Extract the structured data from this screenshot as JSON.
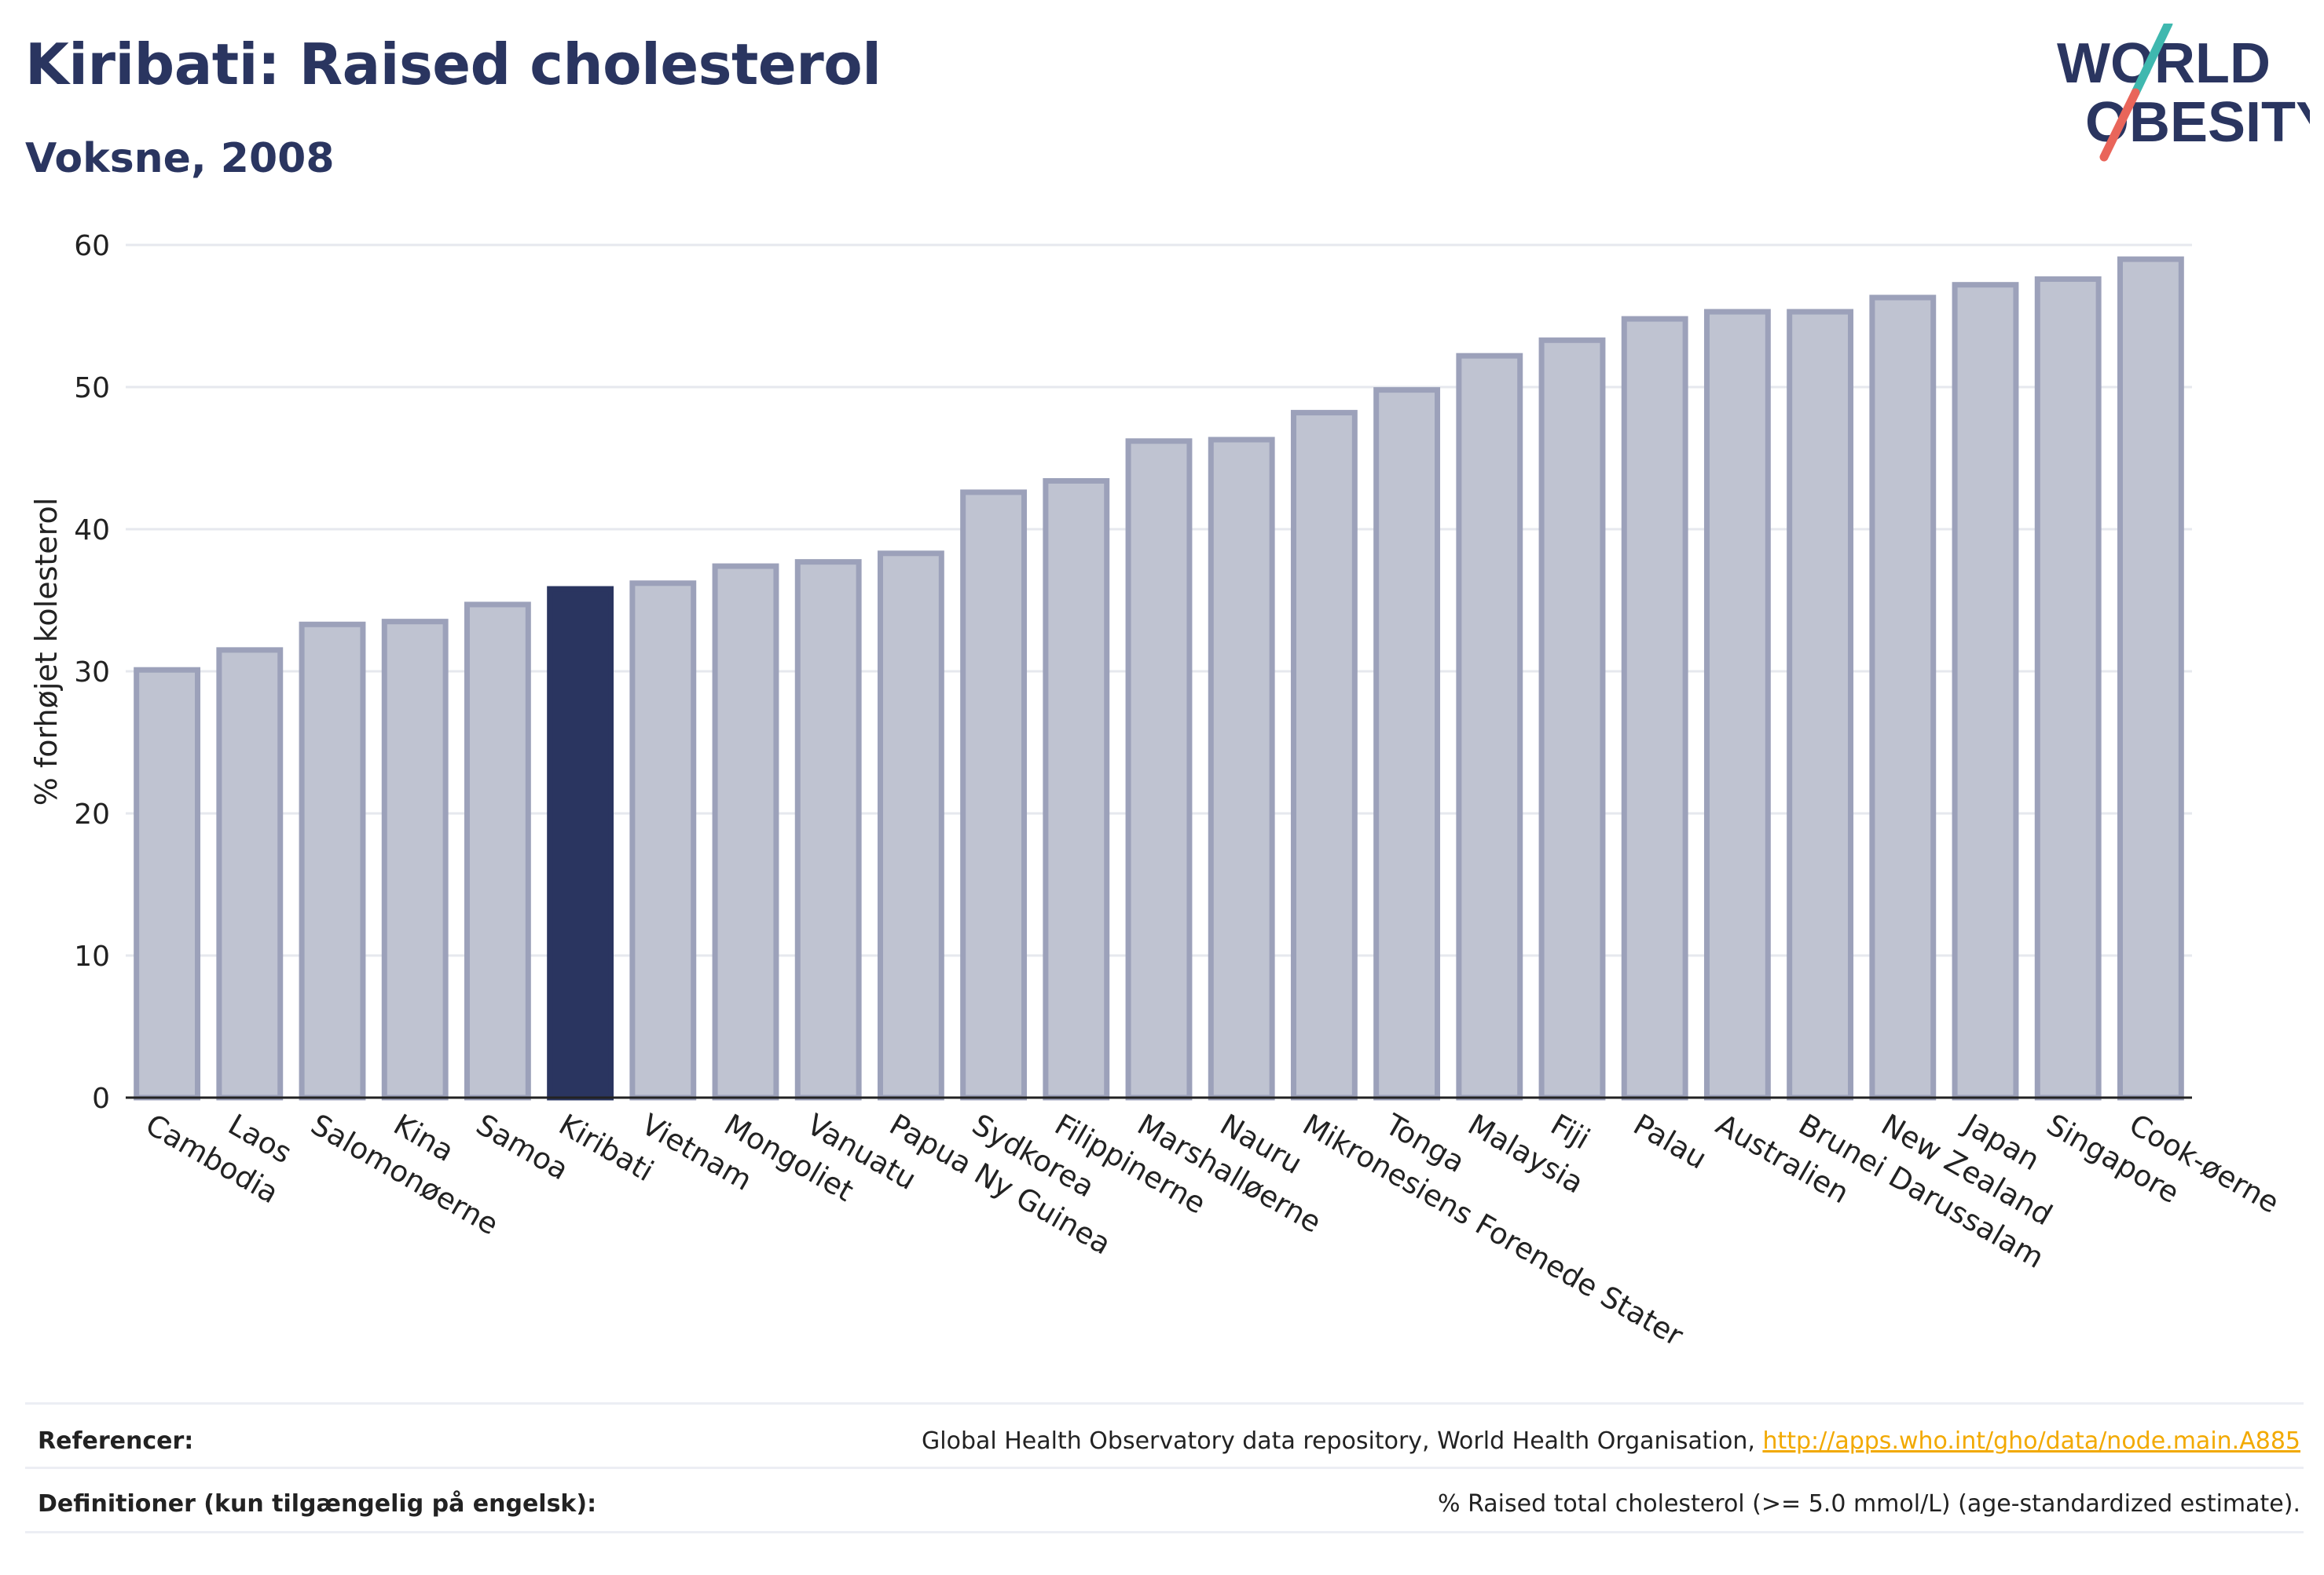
{
  "header": {
    "title": "Kiribati: Raised cholesterol",
    "subtitle": "Voksne, 2008"
  },
  "logo": {
    "line1": "WORLD",
    "line2": "OBESITY",
    "text_color": "#2a3560",
    "slash_top_color": "#3fb8af",
    "slash_bottom_color": "#e9655a"
  },
  "chart_data": {
    "type": "bar",
    "ylabel": "% forhøjet kolesterol",
    "xlabel": "",
    "ylim": [
      0,
      60
    ],
    "yticks": [
      0,
      10,
      20,
      30,
      40,
      50,
      60
    ],
    "grid": true,
    "highlight": "Kiribati",
    "colors": {
      "bar_fill": "#bfc3d1",
      "bar_stroke": "#9ca1ba",
      "highlight_fill": "#2a3560",
      "grid": "#e6e8ee",
      "axis": "#222222"
    },
    "categories": [
      "Cambodia",
      "Laos",
      "Salomonøerne",
      "Kina",
      "Samoa",
      "Kiribati",
      "Vietnam",
      "Mongoliet",
      "Vanuatu",
      "Papua Ny Guinea",
      "Sydkorea",
      "Filippinerne",
      "Marshalløerne",
      "Nauru",
      "Mikronesiens Forenede Stater",
      "Tonga",
      "Malaysia",
      "Fiji",
      "Palau",
      "Australien",
      "Brunei Darussalam",
      "New Zealand",
      "Japan",
      "Singapore",
      "Cook-øerne"
    ],
    "values": [
      30.1,
      31.5,
      33.3,
      33.5,
      34.7,
      35.8,
      36.2,
      37.4,
      37.7,
      38.3,
      42.6,
      43.4,
      46.2,
      46.3,
      48.2,
      49.8,
      52.2,
      53.3,
      54.8,
      55.3,
      55.3,
      56.3,
      57.2,
      57.6,
      59.0
    ]
  },
  "footer": {
    "references_label": "Referencer:",
    "references_text": "Global Health Observatory data repository, World Health Organisation, ",
    "references_link": "http://apps.who.int/gho/data/node.main.A885",
    "definitions_label": "Definitioner (kun tilgængelig på engelsk):",
    "definitions_text": "% Raised total cholesterol (>= 5.0 mmol/L) (age-standardized estimate)."
  }
}
